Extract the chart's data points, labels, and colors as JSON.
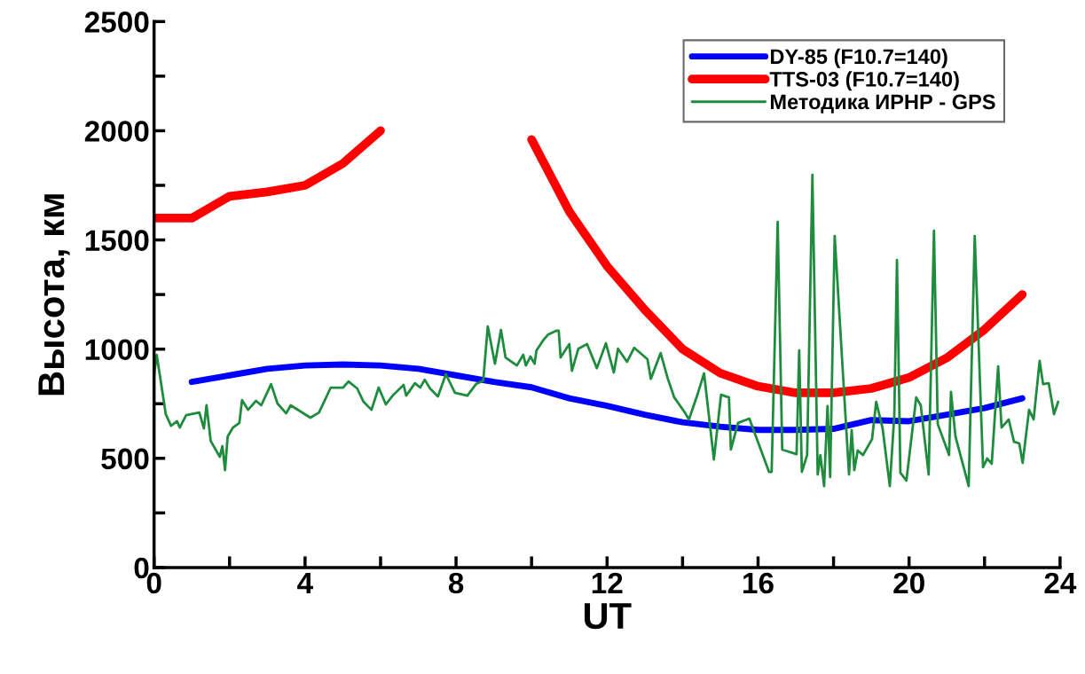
{
  "chart_data": {
    "type": "line",
    "xlabel": "UT",
    "ylabel": "Высота, км",
    "xlim": [
      0,
      24
    ],
    "ylim": [
      0,
      2500
    ],
    "xticks": [
      0,
      {
        "value": 2,
        "label": null
      },
      4,
      {
        "value": 6,
        "label": null
      },
      8,
      {
        "value": 10,
        "label": null
      },
      12,
      {
        "value": 14,
        "label": null
      },
      16,
      {
        "value": 18,
        "label": null
      },
      20,
      {
        "value": 22,
        "label": null
      },
      24
    ],
    "yticks": [
      0,
      {
        "value": 250,
        "label": null
      },
      500,
      {
        "value": 750,
        "label": null
      },
      1000,
      {
        "value": 1250,
        "label": null
      },
      1500,
      {
        "value": 1750,
        "label": null
      },
      2000,
      {
        "value": 2250,
        "label": null
      },
      2500
    ],
    "grid": false,
    "legend": "top right",
    "series": [
      {
        "name": "DY-85 (F10.7=140)",
        "color": "#0000ff",
        "x": [
          1,
          2,
          3,
          4,
          5,
          6,
          7,
          8,
          9,
          10,
          11,
          12,
          13,
          14,
          15,
          16,
          17,
          18,
          19,
          20,
          21,
          22,
          23
        ],
        "values": [
          850,
          880,
          910,
          925,
          930,
          925,
          910,
          880,
          850,
          825,
          775,
          740,
          700,
          665,
          645,
          630,
          630,
          635,
          675,
          670,
          700,
          730,
          775
        ]
      },
      {
        "name": "TTS-03 (F10.7=140)",
        "color": "#ff0000",
        "x": [
          0,
          1,
          2,
          3,
          4,
          5,
          6,
          7,
          8,
          9,
          10,
          11,
          12,
          13,
          14,
          15,
          16,
          17,
          18,
          19,
          20,
          21,
          22,
          23
        ],
        "values": [
          1600,
          1600,
          1700,
          1720,
          1750,
          1850,
          2000,
          null,
          null,
          null,
          1960,
          1630,
          1380,
          1180,
          1000,
          890,
          830,
          800,
          800,
          820,
          870,
          960,
          1090,
          1250
        ]
      },
      {
        "name": "Методика ИРНР - GPS",
        "color": "#1e8c3c",
        "x": [
          0,
          0.07,
          0.31,
          0.45,
          0.61,
          0.68,
          0.85,
          1.2,
          1.32,
          1.39,
          1.5,
          1.74,
          1.81,
          1.88,
          1.95,
          2.09,
          2.26,
          2.33,
          2.49,
          2.7,
          2.84,
          3.1,
          3.27,
          3.5,
          3.62,
          4.14,
          4.37,
          4.68,
          5.01,
          5.15,
          5.38,
          5.55,
          5.76,
          5.95,
          6.14,
          6.32,
          6.61,
          6.68,
          6.91,
          7.05,
          7.17,
          7.31,
          7.52,
          7.73,
          7.97,
          8.3,
          8.53,
          8.72,
          8.84,
          9.03,
          9.19,
          9.31,
          9.61,
          9.78,
          9.85,
          9.97,
          10.08,
          10.13,
          10.32,
          10.44,
          10.65,
          10.72,
          10.77,
          11.0,
          11.07,
          11.24,
          11.47,
          11.73,
          11.97,
          12.18,
          12.29,
          12.53,
          12.72,
          13.07,
          13.16,
          13.42,
          13.61,
          13.78,
          14.06,
          14.17,
          14.41,
          14.57,
          14.83,
          15.02,
          15.23,
          15.28,
          15.47,
          15.77,
          16.29,
          16.36,
          16.52,
          16.64,
          17.02,
          17.09,
          17.16,
          17.3,
          17.44,
          17.58,
          17.65,
          17.75,
          17.84,
          17.91,
          18.03,
          18.41,
          18.48,
          18.55,
          18.64,
          18.78,
          19.02,
          19.13,
          19.3,
          19.49,
          19.61,
          19.68,
          19.77,
          19.93,
          20.19,
          20.31,
          20.52,
          20.66,
          20.76,
          21.06,
          21.11,
          21.23,
          21.58,
          21.74,
          21.96,
          22.07,
          22.19,
          22.36,
          22.45,
          22.64,
          22.78,
          22.92,
          23.01,
          23.18,
          23.3,
          23.46,
          23.55,
          23.7,
          23.84,
          23.95
        ],
        "values": [
          880,
          974,
          702,
          649,
          670,
          641,
          698,
          710,
          637,
          743,
          580,
          507,
          556,
          446,
          600,
          641,
          662,
          767,
          722,
          763,
          743,
          840,
          751,
          706,
          743,
          686,
          710,
          824,
          824,
          852,
          820,
          759,
          722,
          824,
          747,
          787,
          836,
          787,
          844,
          824,
          860,
          820,
          783,
          885,
          800,
          787,
          840,
          856,
          1104,
          933,
          1088,
          962,
          925,
          974,
          925,
          966,
          933,
          994,
          1043,
          1067,
          1084,
          1084,
          962,
          1023,
          901,
          1002,
          1023,
          913,
          1027,
          893,
          1002,
          942,
          1006,
          954,
          864,
          982,
          864,
          779,
          710,
          678,
          800,
          889,
          495,
          791,
          779,
          540,
          662,
          682,
          438,
          438,
          1583,
          540,
          519,
          994,
          438,
          515,
          1798,
          426,
          515,
          373,
          739,
          414,
          1518,
          426,
          629,
          446,
          536,
          515,
          588,
          759,
          637,
          373,
          698,
          1408,
          434,
          398,
          779,
          743,
          426,
          1542,
          657,
          515,
          804,
          600,
          373,
          1518,
          459,
          499,
          475,
          921,
          641,
          678,
          576,
          568,
          479,
          722,
          678,
          946,
          840,
          844,
          702,
          759
        ]
      }
    ]
  }
}
